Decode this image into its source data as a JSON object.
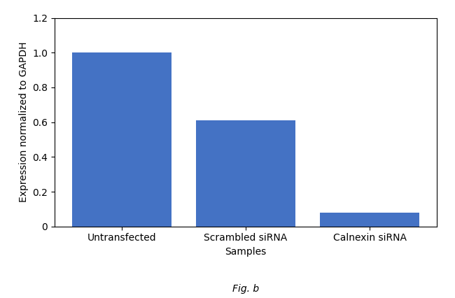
{
  "chart_data": {
    "type": "bar",
    "categories": [
      "Untransfected",
      "Scrambled siRNA",
      "Calnexin siRNA"
    ],
    "values": [
      1.0,
      0.61,
      0.08
    ],
    "color": "#4472c4",
    "xlabel": "Samples",
    "ylabel": "Expression normalized to GAPDH",
    "ylim": [
      0,
      1.2
    ],
    "yticks": [
      0,
      0.2,
      0.4,
      0.6,
      0.8,
      {
        "value": 1,
        "label": "1.0"
      },
      1.2
    ],
    "grid": false,
    "annotations": [
      "Fig. b"
    ]
  }
}
